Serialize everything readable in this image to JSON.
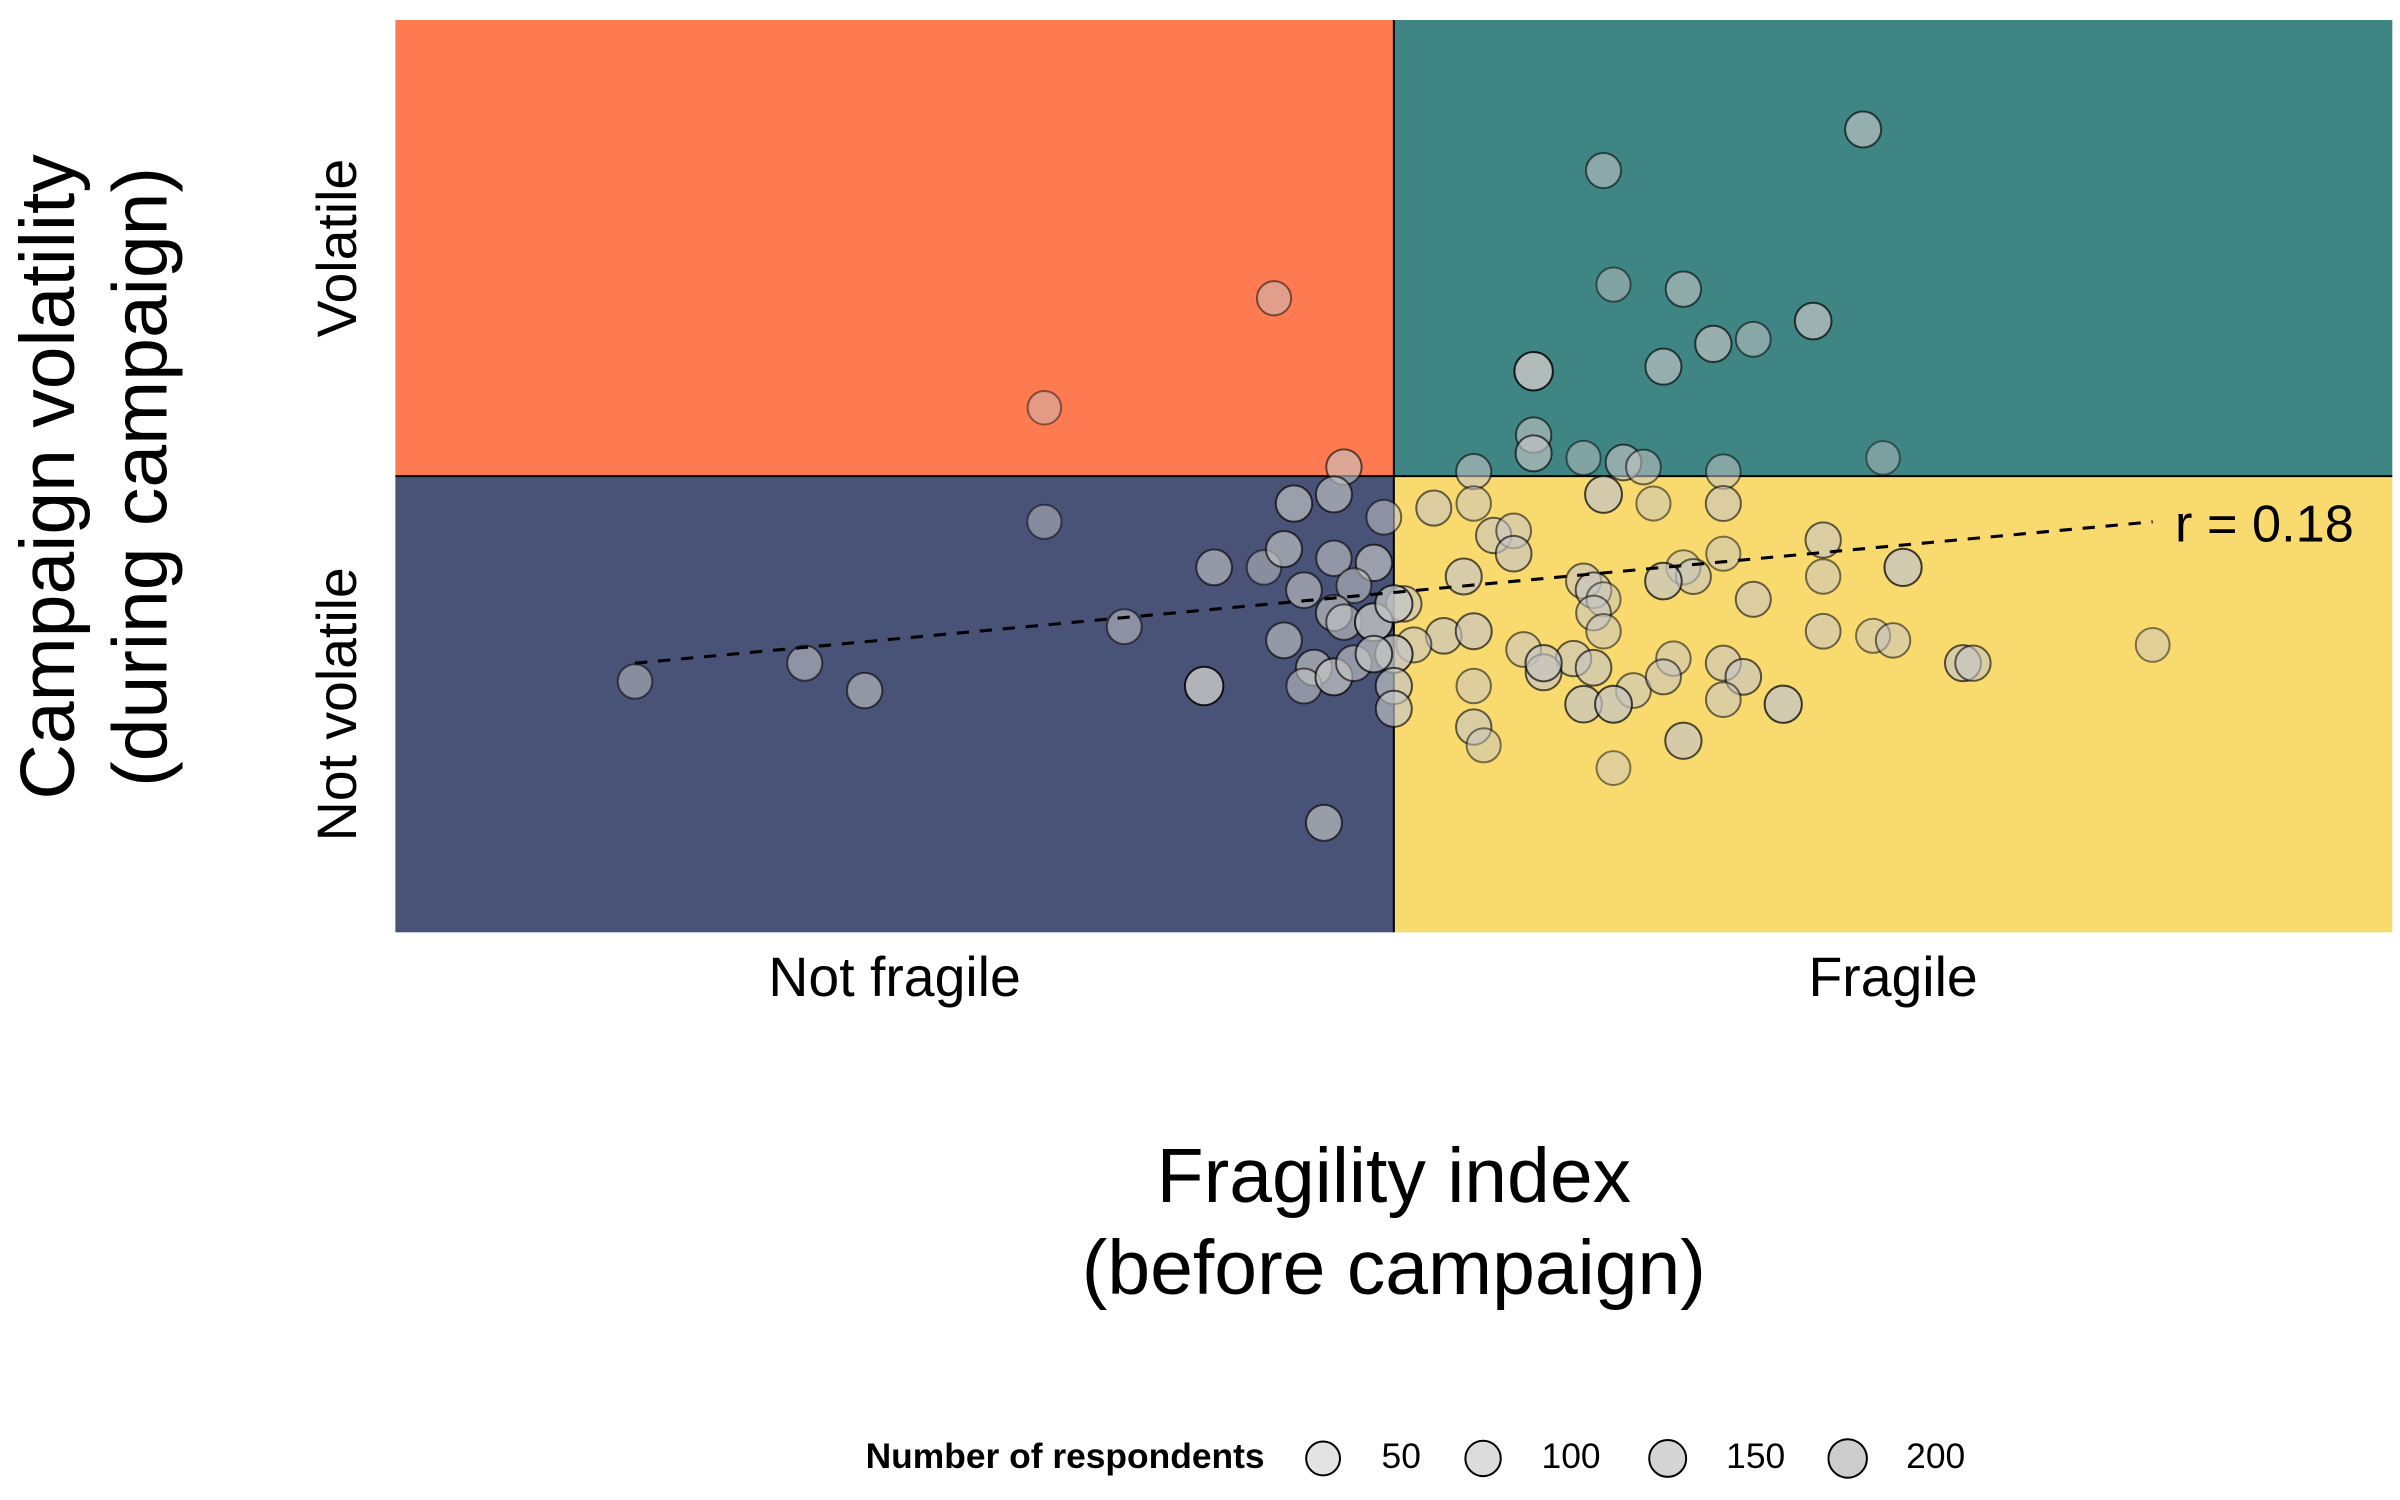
{
  "chart_data": {
    "type": "scatter",
    "xlabel": [
      "Fragility index",
      "(before campaign)"
    ],
    "ylabel": [
      "Campaign volatility",
      "(during campaign)"
    ],
    "xlim": [
      -1,
      1
    ],
    "ylim": [
      -1,
      1
    ],
    "xticks": [
      {
        "value": -0.5,
        "label": "Not fragile"
      },
      {
        "value": 0.5,
        "label": "Fragile"
      }
    ],
    "yticks": [
      {
        "value": -0.5,
        "label": "Not volatile"
      },
      {
        "value": 0.5,
        "label": "Volatile"
      }
    ],
    "quadrant_colors": {
      "top_left": "#fe7b52",
      "top_right": "#3e8583",
      "bottom_left": "#495277",
      "bottom_right": "#f9da6f"
    },
    "point_color": "#c4c4c4",
    "x": [
      0.47,
      0.21,
      0.22,
      0.29,
      0.42,
      0.32,
      0.36,
      0.27,
      0.14,
      -0.12,
      -0.35,
      0.14,
      0.14,
      0.19,
      0.23,
      0.25,
      0.33,
      0.49,
      0.08,
      -0.05,
      -0.06,
      -0.1,
      -0.35,
      -0.01,
      0.04,
      0.08,
      0.21,
      0.26,
      0.33,
      0.1,
      0.12,
      0.12,
      0.43,
      0.33,
      0.51,
      0.29,
      0.3,
      0.27,
      0.43,
      0.19,
      0.2,
      0.07,
      0.01,
      0.36,
      0.21,
      0.2,
      0.21,
      0.43,
      0.48,
      0.5,
      0.76,
      0.57,
      0.58,
      0.05,
      0.08,
      0.02,
      0.13,
      0.18,
      0.28,
      0.33,
      0.35,
      0.15,
      0.15,
      0.2,
      0.24,
      0.27,
      0.08,
      0.19,
      0.22,
      0.33,
      0.39,
      0.08,
      0.09,
      0.29,
      0.22,
      -0.07,
      -0.76,
      -0.59,
      -0.53,
      -0.27,
      -0.19,
      -0.18,
      -0.13,
      -0.11,
      -0.09,
      -0.06,
      -0.02,
      -0.04,
      -0.06,
      -0.05,
      -0.11,
      -0.08,
      -0.09,
      -0.06,
      -0.04,
      -0.02,
      0.0,
      0.0,
      0.0,
      0.0,
      -0.02
    ],
    "y": [
      0.76,
      0.67,
      0.42,
      0.41,
      0.34,
      0.29,
      0.3,
      0.24,
      0.23,
      0.39,
      0.15,
      0.09,
      0.05,
      0.04,
      0.03,
      0.02,
      0.01,
      0.04,
      0.01,
      0.02,
      -0.04,
      -0.06,
      -0.1,
      -0.09,
      -0.07,
      -0.06,
      -0.04,
      -0.06,
      -0.06,
      -0.13,
      -0.12,
      -0.17,
      -0.14,
      -0.17,
      -0.2,
      -0.2,
      -0.22,
      -0.23,
      -0.22,
      -0.23,
      -0.25,
      -0.22,
      -0.28,
      -0.27,
      -0.27,
      -0.3,
      -0.34,
      -0.34,
      -0.35,
      -0.36,
      -0.37,
      -0.41,
      -0.41,
      -0.35,
      -0.34,
      -0.37,
      -0.38,
      -0.4,
      -0.4,
      -0.41,
      -0.44,
      -0.43,
      -0.41,
      -0.42,
      -0.47,
      -0.44,
      -0.46,
      -0.5,
      -0.5,
      -0.49,
      -0.5,
      -0.55,
      -0.59,
      -0.58,
      -0.64,
      -0.76,
      -0.45,
      -0.41,
      -0.47,
      -0.33,
      -0.46,
      -0.2,
      -0.2,
      -0.16,
      -0.25,
      -0.18,
      -0.19,
      -0.24,
      -0.3,
      -0.32,
      -0.36,
      -0.42,
      -0.46,
      -0.44,
      -0.41,
      -0.32,
      -0.28,
      -0.39,
      -0.46,
      -0.51,
      -0.39
    ],
    "size": [
      120,
      90,
      60,
      100,
      140,
      130,
      80,
      120,
      200,
      60,
      40,
      100,
      120,
      60,
      110,
      80,
      70,
      40,
      90,
      100,
      120,
      130,
      60,
      80,
      90,
      70,
      150,
      60,
      90,
      100,
      80,
      110,
      100,
      60,
      160,
      60,
      90,
      140,
      70,
      90,
      110,
      120,
      100,
      90,
      60,
      80,
      70,
      80,
      60,
      70,
      50,
      120,
      100,
      110,
      120,
      90,
      80,
      100,
      70,
      90,
      110,
      120,
      130,
      110,
      80,
      90,
      70,
      140,
      150,
      80,
      160,
      100,
      60,
      130,
      50,
      120,
      70,
      90,
      100,
      80,
      200,
      110,
      70,
      120,
      110,
      100,
      130,
      80,
      120,
      100,
      110,
      120,
      90,
      150,
      110,
      180,
      160,
      170,
      130,
      120,
      140
    ],
    "trend_line": {
      "x": [
        -0.76,
        0.76
      ],
      "y": [
        -0.41,
        -0.1
      ]
    },
    "annotation": "r = 0.18",
    "legend": {
      "title": "Number of respondents",
      "sizes": [
        50,
        100,
        150,
        200
      ]
    }
  }
}
